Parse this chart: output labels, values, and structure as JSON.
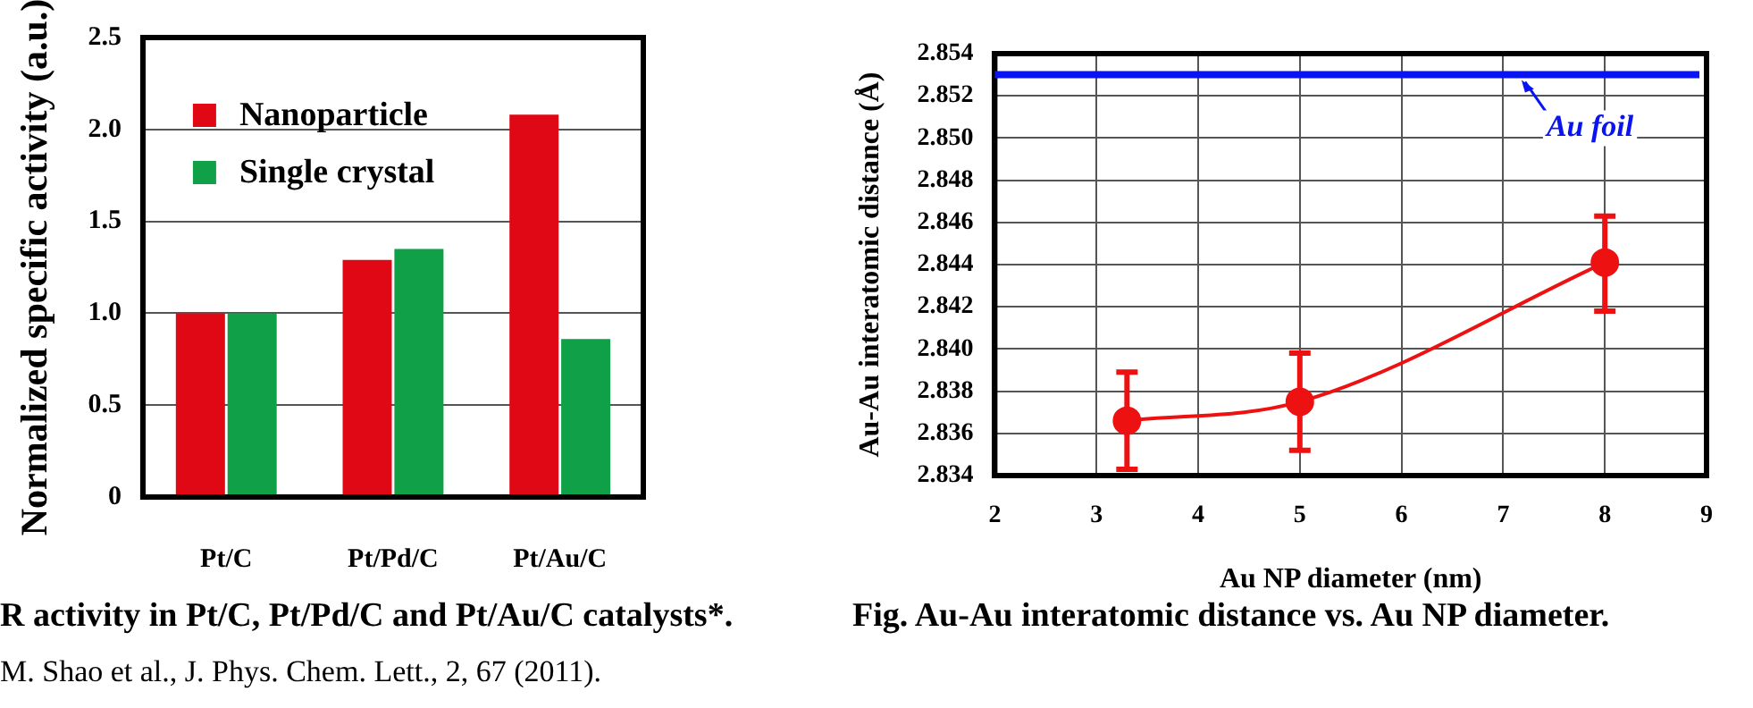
{
  "chart_data": [
    {
      "type": "bar",
      "title": "R activity in Pt/C, Pt/Pd/C and Pt/Au/C catalysts*.",
      "ylabel": "Normalized specific activity (a.u.)",
      "categories": [
        "Pt/C",
        "Pt/Pd/C",
        "Pt/Au/C"
      ],
      "series": [
        {
          "name": "Nanoparticle",
          "color": "#e00814",
          "values": [
            1.0,
            1.29,
            2.08
          ]
        },
        {
          "name": "Single crystal",
          "color": "#0fa048",
          "values": [
            1.0,
            1.35,
            0.86
          ]
        }
      ],
      "ylim": [
        0,
        2.5
      ],
      "yticks": [
        0,
        0.5,
        {
          "value": 1,
          "label": "1.0"
        },
        1.5,
        {
          "value": 2,
          "label": "2.0"
        },
        2.5
      ],
      "grid": "y",
      "legend": "top left",
      "annotations": [
        "M. Shao et al., J. Phys. Chem. Lett., 2, 67 (2011)."
      ]
    },
    {
      "type": "line",
      "title": "Fig. Au-Au interatomic distance vs. Au NP diameter.",
      "xlabel": "Au NP diameter (nm)",
      "ylabel": "Au-Au interatomic distance (Å)",
      "x": [
        3.3,
        5,
        8
      ],
      "series": [
        {
          "color": "#ee1111",
          "values": [
            2.8366,
            2.8375,
            2.8441
          ],
          "errors": [
            [
              2.8343,
              2.8389
            ],
            [
              2.8352,
              2.8398
            ],
            [
              2.8418,
              2.8463
            ]
          ]
        }
      ],
      "xlim": [
        2,
        9
      ],
      "xticks": [
        2,
        3,
        4,
        5,
        6,
        7,
        8,
        9
      ],
      "ylim": [
        2.834,
        2.854
      ],
      "yticks": [
        2.834,
        2.836,
        2.838,
        {
          "value": 2.84,
          "label": "2.840"
        },
        2.842,
        2.844,
        2.846,
        2.848,
        {
          "value": 2.85,
          "label": "2.850"
        },
        2.852,
        2.854
      ],
      "grid": true,
      "marker": "circle",
      "line_style": "solid",
      "ref_lines": [
        {
          "axis": "y",
          "value": 2.853,
          "label": "Au foil",
          "color": "#0a14f0"
        }
      ]
    }
  ]
}
